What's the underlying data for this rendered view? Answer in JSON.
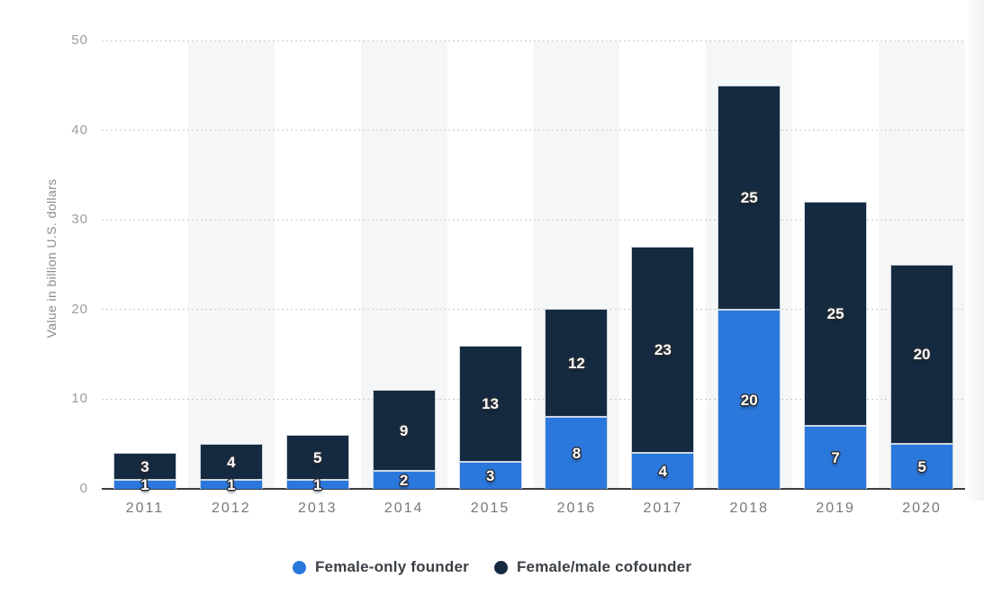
{
  "chart_data": {
    "type": "bar",
    "stacked": true,
    "title": "",
    "categories": [
      "2011",
      "2012",
      "2013",
      "2014",
      "2015",
      "2016",
      "2017",
      "2018",
      "2019",
      "2020"
    ],
    "series": [
      {
        "name": "Female-only founder",
        "color": "#2b78dd",
        "values": [
          1,
          1,
          1,
          2,
          3,
          8,
          4,
          20,
          7,
          5
        ]
      },
      {
        "name": "Female/male cofounder",
        "color": "#152a40",
        "values": [
          3,
          4,
          5,
          9,
          13,
          12,
          23,
          25,
          25,
          20
        ]
      }
    ],
    "xlabel": "",
    "ylabel": "Value in billion U.S. dollars",
    "ylim": [
      0,
      50
    ],
    "y_ticks": [
      0,
      10,
      20,
      30,
      40,
      50
    ],
    "grid": "horizontal-dotted",
    "background_stripes": "alternating-columns",
    "bar_value_labels": true,
    "legend_position": "bottom"
  },
  "colors": {
    "stripe": "#f5f6f7",
    "gridline": "#c9c9c9",
    "axis_line": "#3d3d3d",
    "tick_text": "#9b9b9b",
    "x_tick_text": "#787878",
    "axis_title_text": "#8a8a8a",
    "legend_text": "#3a4046"
  }
}
